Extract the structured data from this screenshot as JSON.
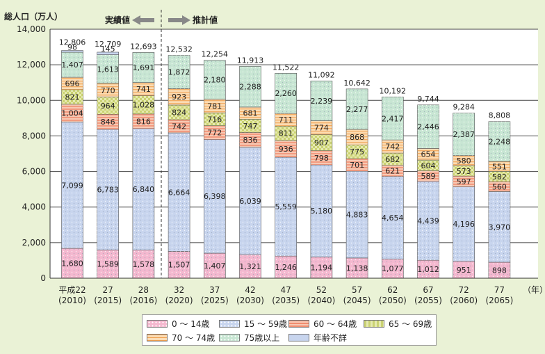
{
  "chart_data": {
    "type": "bar",
    "stacked": true,
    "ylabel": "総人口（万人）",
    "ylim": [
      0,
      14000
    ],
    "yticks": [
      "0",
      "2,000",
      "4,000",
      "6,000",
      "8,000",
      "10,000",
      "12,000",
      "14,000"
    ],
    "grid": true,
    "x_unit": "（年）",
    "actual_label": "実績値",
    "projected_label": "推計値",
    "categories_top": [
      "平成22",
      "27",
      "28",
      "32",
      "37",
      "42",
      "47",
      "52",
      "57",
      "62",
      "67",
      "72",
      "77"
    ],
    "categories_bottom": [
      "(2010)",
      "(2015)",
      "(2016)",
      "(2020)",
      "(2025)",
      "(2030)",
      "(2035)",
      "(2040)",
      "(2045)",
      "(2050)",
      "(2055)",
      "(2060)",
      "(2065)"
    ],
    "totals": [
      12806,
      12709,
      12693,
      12532,
      12254,
      11913,
      11522,
      11092,
      10642,
      10192,
      9744,
      9284,
      8808
    ],
    "total_labels": [
      "12,806",
      "12,709",
      "12,693",
      "12,532",
      "12,254",
      "11,913",
      "11,522",
      "11,092",
      "10,642",
      "10,192",
      "9,744",
      "9,284",
      "8,808"
    ],
    "series": [
      {
        "name": "0 ～ 14歳",
        "color": "#f4b8cf",
        "pattern": "dots",
        "values": [
          1680,
          1589,
          1578,
          1507,
          1407,
          1321,
          1246,
          1194,
          1138,
          1077,
          1012,
          951,
          898
        ],
        "labels": [
          "1,680",
          "1,589",
          "1,578",
          "1,507",
          "1,407",
          "1,321",
          "1,246",
          "1,194",
          "1,138",
          "1,077",
          "1,012",
          "951",
          "898"
        ]
      },
      {
        "name": "15 ～ 59歳",
        "color": "#c8d5ee",
        "pattern": "dots",
        "values": [
          7099,
          6783,
          6840,
          6664,
          6398,
          6039,
          5559,
          5180,
          4883,
          4654,
          4439,
          4196,
          3970
        ],
        "labels": [
          "7,099",
          "6,783",
          "6,840",
          "6,664",
          "6,398",
          "6,039",
          "5,559",
          "5,180",
          "4,883",
          "4,654",
          "4,439",
          "4,196",
          "3,970"
        ]
      },
      {
        "name": "60 ～ 64歳",
        "color": "#f7c9b4",
        "pattern": "stripes",
        "values": [
          1004,
          846,
          816,
          742,
          772,
          836,
          936,
          798,
          701,
          621,
          589,
          597,
          560
        ],
        "labels": [
          "1,004",
          "846",
          "816",
          "742",
          "772",
          "836",
          "936",
          "798",
          "701",
          "621",
          "589",
          "597",
          "560"
        ]
      },
      {
        "name": "65 ～ 69歳",
        "color": "#e6eab0",
        "pattern": "checks",
        "values": [
          821,
          964,
          1028,
          824,
          716,
          747,
          811,
          907,
          775,
          682,
          604,
          573,
          582
        ],
        "labels": [
          "821",
          "964",
          "1,028",
          "824",
          "716",
          "747",
          "811",
          "907",
          "775",
          "682",
          "604",
          "573",
          "582"
        ]
      },
      {
        "name": "70 ～ 74歳",
        "color": "#fbdcb4",
        "pattern": "lines",
        "values": [
          696,
          770,
          741,
          923,
          781,
          681,
          711,
          774,
          868,
          742,
          654,
          580,
          551
        ],
        "labels": [
          "696",
          "770",
          "741",
          "923",
          "781",
          "681",
          "711",
          "774",
          "868",
          "742",
          "654",
          "580",
          "551"
        ]
      },
      {
        "name": "75歳以上",
        "color": "#c8e6d3",
        "pattern": "dots",
        "values": [
          1407,
          1613,
          1691,
          1872,
          2180,
          2288,
          2260,
          2239,
          2277,
          2417,
          2446,
          2387,
          2248
        ],
        "labels": [
          "1,407",
          "1,613",
          "1,691",
          "1,872",
          "2,180",
          "2,288",
          "2,260",
          "2,239",
          "2,277",
          "2,417",
          "2,446",
          "2,387",
          "2,248"
        ]
      },
      {
        "name": "年齢不詳",
        "color": "#c8d5ee",
        "pattern": "none",
        "values": [
          98,
          145,
          0,
          0,
          0,
          0,
          0,
          0,
          0,
          0,
          0,
          0,
          0
        ],
        "labels": [
          "98",
          "145",
          "",
          "",
          "",
          "",
          "",
          "",
          "",
          "",
          "",
          "",
          ""
        ]
      }
    ]
  }
}
